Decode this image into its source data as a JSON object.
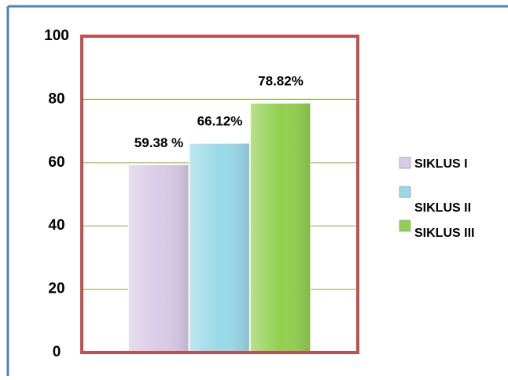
{
  "chart_data": {
    "type": "bar",
    "categories": [
      null
    ],
    "series": [
      {
        "name": "SIKLUS I",
        "color": "#d9cbe6",
        "values": [
          59.38
        ],
        "value_labels": [
          "59.38 %"
        ]
      },
      {
        "name": "SIKLUS II",
        "color": "#9ad9e8",
        "values": [
          66.12
        ],
        "value_labels": [
          "66.12%"
        ]
      },
      {
        "name": "SIKLUS III",
        "color": "#92d050",
        "values": [
          78.82
        ],
        "value_labels": [
          "78.82%"
        ]
      }
    ],
    "ylim": [
      0,
      100
    ],
    "yticks": [
      0,
      20,
      40,
      60,
      80,
      100
    ],
    "grid": true,
    "legend": "right"
  }
}
